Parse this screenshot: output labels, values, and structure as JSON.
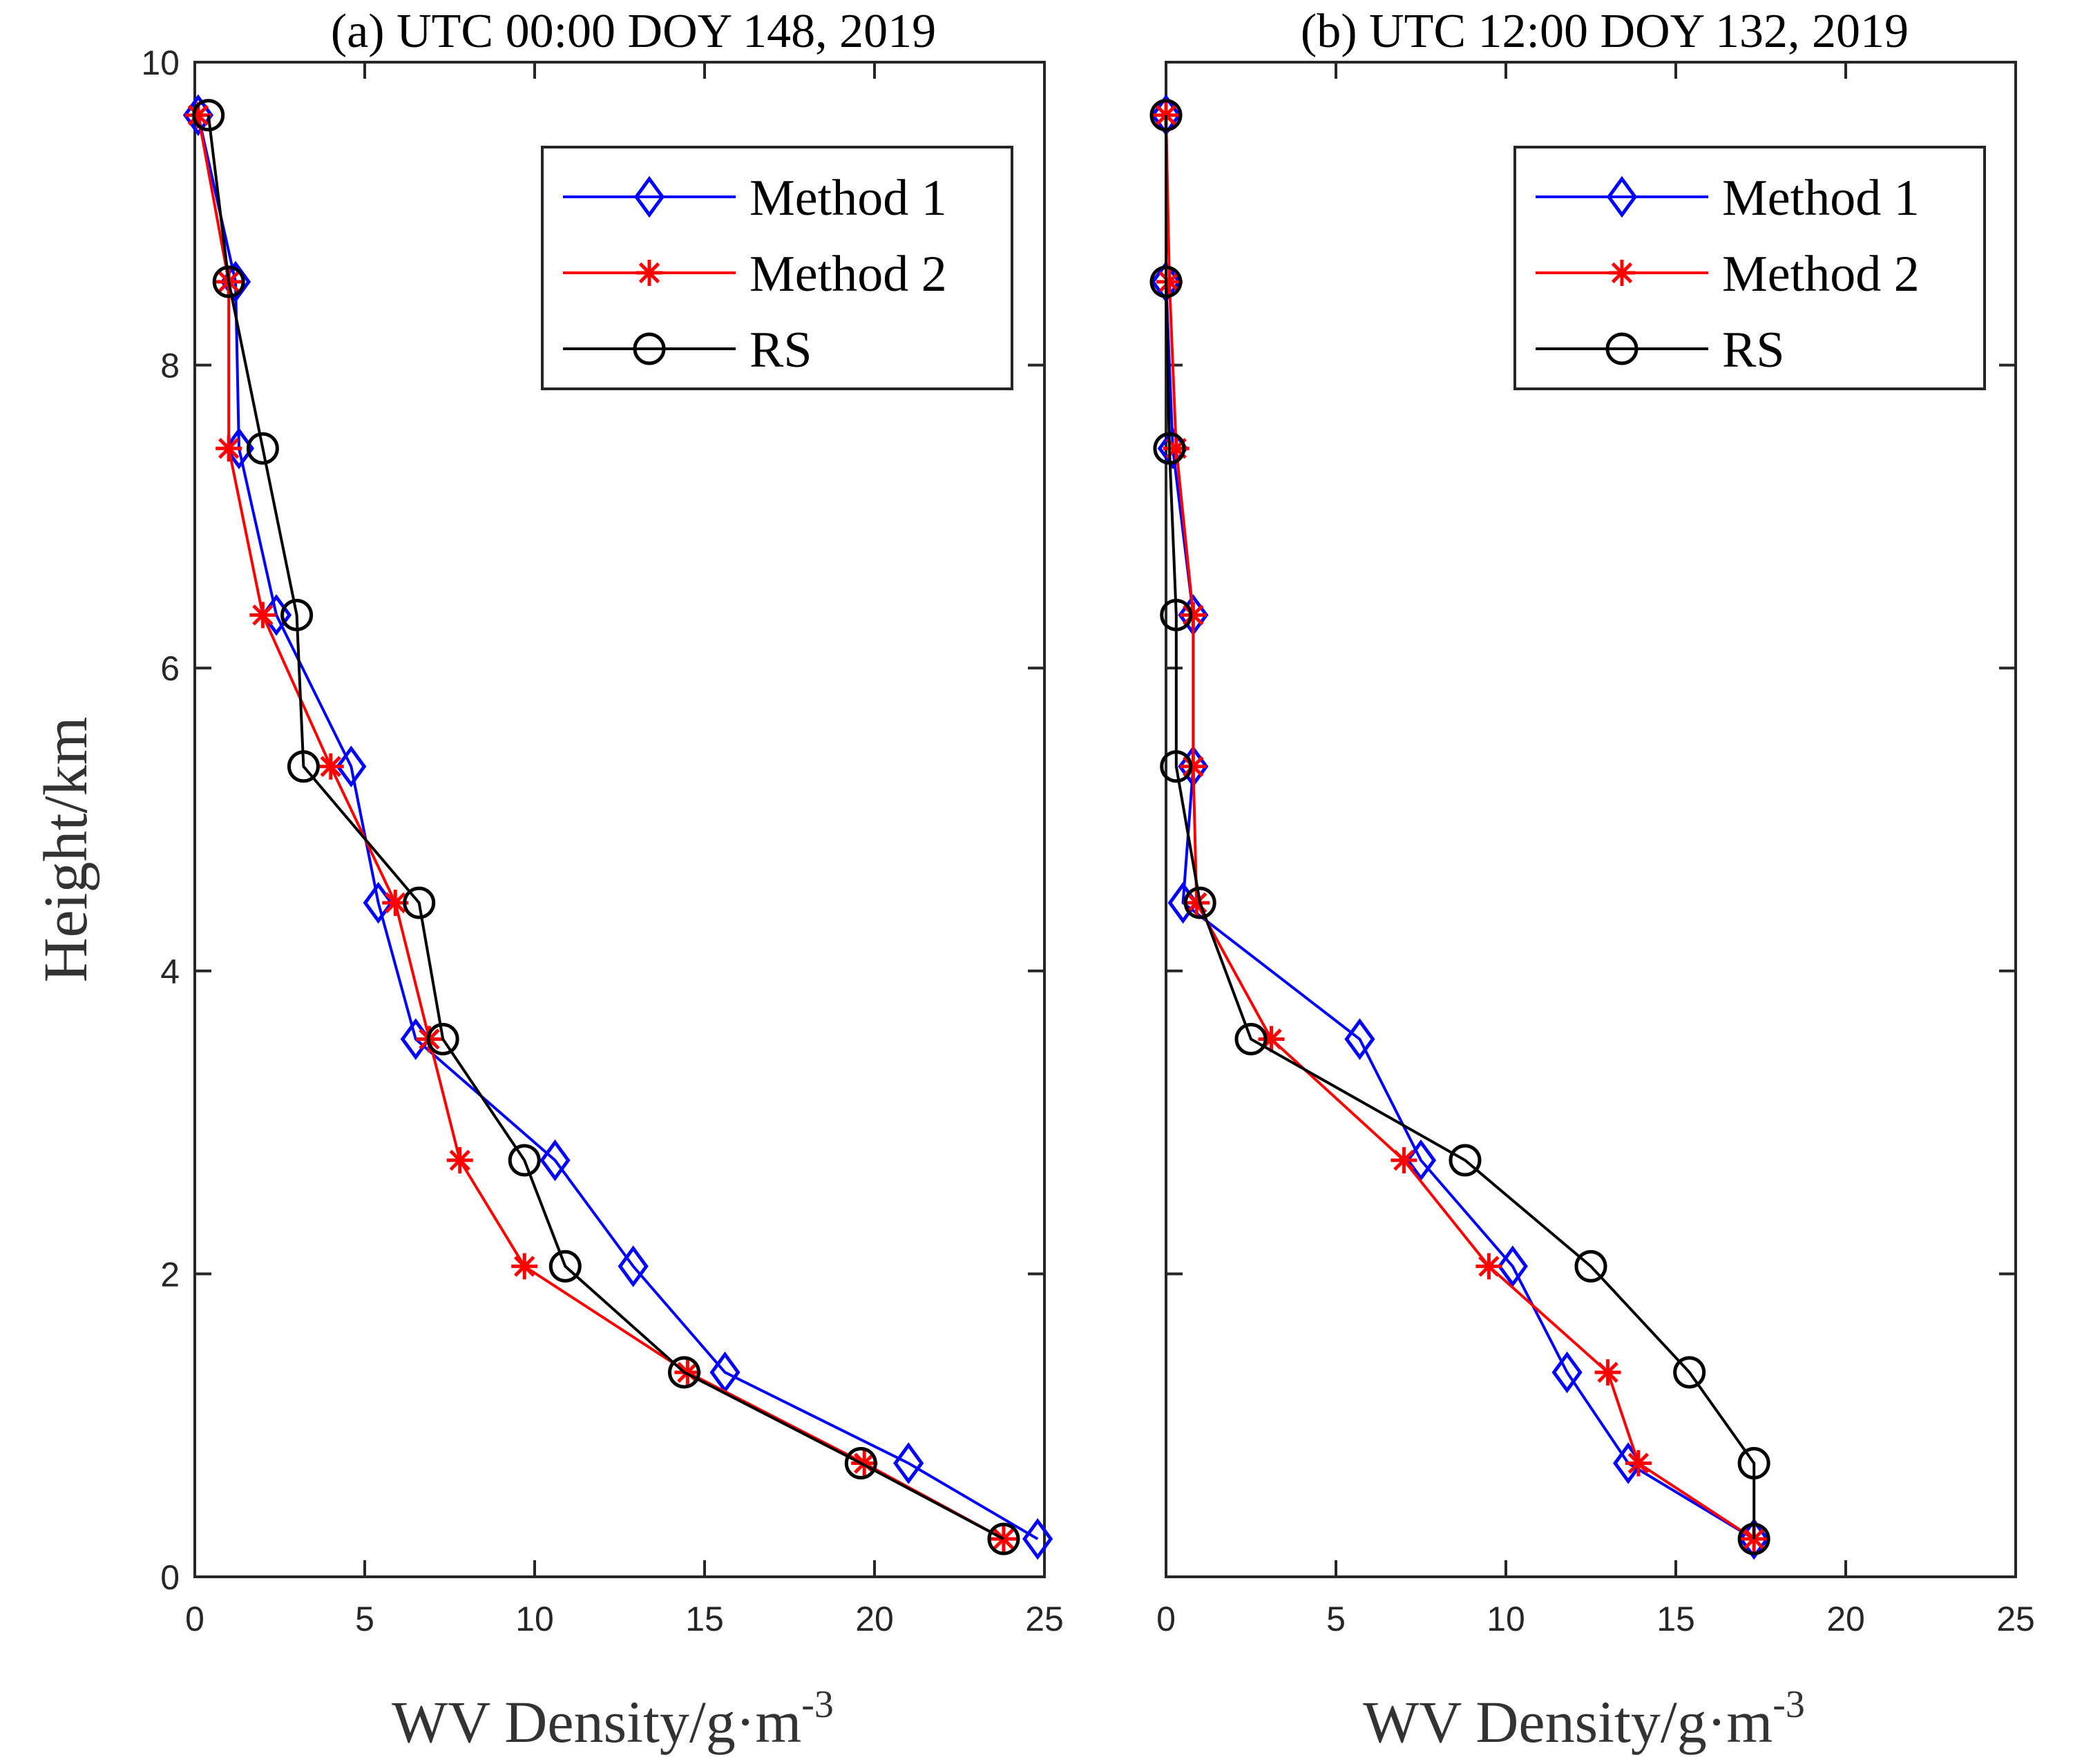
{
  "figure": {
    "ylabel": "Height/km",
    "xlabel_main": "WV Density/g·m",
    "xlabel_exp": "-3"
  },
  "colors": {
    "method1": "#0000ff",
    "method2": "#ff0000",
    "rs": "#000000",
    "axis": "#262626"
  },
  "chart_data": [
    {
      "type": "line",
      "title": "(a) UTC 00:00 DOY 148, 2019",
      "xlabel": "WV Density/g·m-3",
      "ylabel": "Height/km",
      "xlim": [
        0,
        25
      ],
      "ylim": [
        0,
        10
      ],
      "xticks": [
        0,
        5,
        10,
        15,
        20,
        25
      ],
      "yticks": [
        0,
        2,
        4,
        6,
        8,
        10
      ],
      "legend": "top-right",
      "series": [
        {
          "name": "Method 1",
          "marker": "diamond",
          "x": [
            24.8,
            21.0,
            15.6,
            12.9,
            10.6,
            6.5,
            5.4,
            4.6,
            2.4,
            1.3,
            1.2,
            0.1
          ],
          "y": [
            0.25,
            0.75,
            1.35,
            2.05,
            2.75,
            3.55,
            4.45,
            5.35,
            6.35,
            7.45,
            8.55,
            9.65
          ]
        },
        {
          "name": "Method 2",
          "marker": "asterisk",
          "x": [
            23.8,
            19.7,
            14.5,
            9.7,
            7.8,
            6.9,
            5.9,
            4.0,
            2.0,
            1.0,
            1.0,
            0.1
          ],
          "y": [
            0.25,
            0.75,
            1.35,
            2.05,
            2.75,
            3.55,
            4.45,
            5.35,
            6.35,
            7.45,
            8.55,
            9.65
          ]
        },
        {
          "name": "RS",
          "marker": "circle",
          "x": [
            23.8,
            19.6,
            14.4,
            10.9,
            9.7,
            7.3,
            6.6,
            3.2,
            3.0,
            2.0,
            1.0,
            0.4
          ],
          "y": [
            0.25,
            0.75,
            1.35,
            2.05,
            2.75,
            3.55,
            4.45,
            5.35,
            6.35,
            7.45,
            8.55,
            9.65
          ]
        }
      ]
    },
    {
      "type": "line",
      "title": "(b) UTC 12:00 DOY 132, 2019",
      "xlabel": "WV Density/g·m-3",
      "ylabel": "",
      "xlim": [
        0,
        25
      ],
      "ylim": [
        0,
        10
      ],
      "xticks": [
        0,
        5,
        10,
        15,
        20,
        25
      ],
      "yticks": [
        0,
        2,
        4,
        6,
        8,
        10
      ],
      "legend": "top-right",
      "series": [
        {
          "name": "Method 1",
          "marker": "diamond",
          "x": [
            17.3,
            13.6,
            11.8,
            10.2,
            7.5,
            5.7,
            0.5,
            0.8,
            0.8,
            0.2,
            0.0,
            0.0
          ],
          "y": [
            0.25,
            0.75,
            1.35,
            2.05,
            2.75,
            3.55,
            4.45,
            5.35,
            6.35,
            7.45,
            8.55,
            9.65
          ]
        },
        {
          "name": "Method 2",
          "marker": "asterisk",
          "x": [
            17.3,
            13.9,
            13.0,
            9.5,
            7.0,
            3.1,
            0.9,
            0.8,
            0.8,
            0.3,
            0.1,
            0.0
          ],
          "y": [
            0.25,
            0.75,
            1.35,
            2.05,
            2.75,
            3.55,
            4.45,
            5.35,
            6.35,
            7.45,
            8.55,
            9.65
          ]
        },
        {
          "name": "RS",
          "marker": "circle",
          "x": [
            17.3,
            17.3,
            15.4,
            12.5,
            8.8,
            2.5,
            1.0,
            0.3,
            0.3,
            0.1,
            0.0,
            0.0
          ],
          "y": [
            0.25,
            0.75,
            1.35,
            2.05,
            2.75,
            3.55,
            4.45,
            5.35,
            6.35,
            7.45,
            8.55,
            9.65
          ]
        }
      ]
    }
  ]
}
